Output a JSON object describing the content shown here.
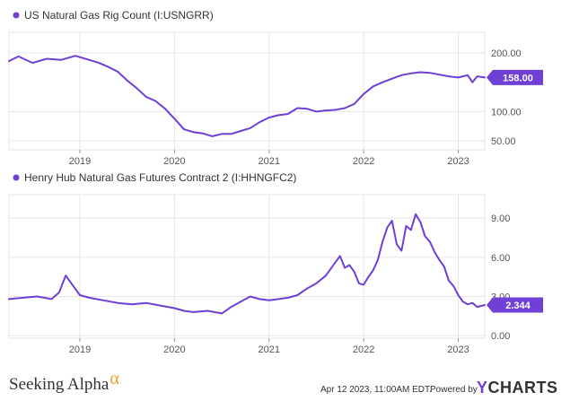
{
  "colors": {
    "series": "#6f3fd6",
    "grid": "#e6e6e6",
    "axis": "#999999"
  },
  "chart_data": [
    {
      "type": "line",
      "legend": "US Natural Gas Rig Count (I:USNGRR)",
      "ylim": [
        35,
        235
      ],
      "xlim": [
        2018.25,
        2023.28
      ],
      "x_ticks": [
        "2019",
        "2020",
        "2021",
        "2022",
        "2023"
      ],
      "y_ticks": [
        {
          "value": 200,
          "label": "200.00"
        },
        {
          "value": 100,
          "label": "100.00"
        },
        {
          "value": 50,
          "label": "50.00"
        }
      ],
      "last_value_label": "158.00",
      "grid": true,
      "series": [
        {
          "x": [
            2018.25,
            2018.35,
            2018.5,
            2018.65,
            2018.8,
            2018.95,
            2019.1,
            2019.2,
            2019.3,
            2019.4,
            2019.5,
            2019.6,
            2019.7,
            2019.8,
            2019.9,
            2020.0,
            2020.1,
            2020.2,
            2020.3,
            2020.4,
            2020.5,
            2020.6,
            2020.7,
            2020.8,
            2020.9,
            2021.0,
            2021.1,
            2021.2,
            2021.3,
            2021.4,
            2021.5,
            2021.6,
            2021.7,
            2021.8,
            2021.9,
            2022.0,
            2022.1,
            2022.2,
            2022.3,
            2022.4,
            2022.5,
            2022.6,
            2022.7,
            2022.8,
            2022.9,
            2023.0,
            2023.1,
            2023.15,
            2023.2,
            2023.28
          ],
          "values": [
            186,
            194,
            183,
            190,
            188,
            195,
            188,
            183,
            176,
            168,
            153,
            140,
            125,
            118,
            105,
            88,
            70,
            65,
            63,
            58,
            62,
            62,
            67,
            72,
            82,
            90,
            94,
            96,
            106,
            105,
            100,
            102,
            103,
            106,
            113,
            130,
            143,
            150,
            156,
            162,
            165,
            167,
            166,
            163,
            160,
            158,
            162,
            150,
            160,
            158
          ]
        }
      ]
    },
    {
      "type": "line",
      "legend": "Henry Hub Natural Gas Futures Contract 2 (I:HHNGFC2)",
      "ylim": [
        -0.2,
        10.8
      ],
      "xlim": [
        2018.25,
        2023.28
      ],
      "x_ticks": [
        "2019",
        "2020",
        "2021",
        "2022",
        "2023"
      ],
      "y_ticks": [
        {
          "value": 9,
          "label": "9.00"
        },
        {
          "value": 6,
          "label": "6.00"
        },
        {
          "value": 3,
          "label": "3.00"
        },
        {
          "value": 0,
          "label": "0.00"
        }
      ],
      "last_value_label": "2.344",
      "grid": true,
      "series": [
        {
          "x": [
            2018.25,
            2018.4,
            2018.55,
            2018.7,
            2018.78,
            2018.85,
            2018.92,
            2019.0,
            2019.1,
            2019.25,
            2019.4,
            2019.55,
            2019.7,
            2019.85,
            2020.0,
            2020.1,
            2020.2,
            2020.35,
            2020.5,
            2020.6,
            2020.7,
            2020.8,
            2020.9,
            2021.0,
            2021.1,
            2021.2,
            2021.3,
            2021.4,
            2021.5,
            2021.6,
            2021.7,
            2021.75,
            2021.8,
            2021.85,
            2021.9,
            2021.95,
            2022.0,
            2022.05,
            2022.1,
            2022.15,
            2022.2,
            2022.25,
            2022.3,
            2022.35,
            2022.4,
            2022.45,
            2022.5,
            2022.55,
            2022.6,
            2022.65,
            2022.7,
            2022.75,
            2022.8,
            2022.85,
            2022.9,
            2022.95,
            2023.0,
            2023.05,
            2023.1,
            2023.15,
            2023.2,
            2023.28
          ],
          "values": [
            2.8,
            2.9,
            3.0,
            2.8,
            3.3,
            4.6,
            3.9,
            3.1,
            2.9,
            2.7,
            2.5,
            2.4,
            2.5,
            2.3,
            2.1,
            1.9,
            1.8,
            1.9,
            1.7,
            2.2,
            2.6,
            3.0,
            2.8,
            2.7,
            2.8,
            2.9,
            3.1,
            3.6,
            4.0,
            4.6,
            5.6,
            6.1,
            5.2,
            5.4,
            4.9,
            4.0,
            3.9,
            4.5,
            5.0,
            5.8,
            7.2,
            8.3,
            8.8,
            7.0,
            6.5,
            8.4,
            8.1,
            9.3,
            8.7,
            7.6,
            7.2,
            6.4,
            5.8,
            5.3,
            4.2,
            3.8,
            3.1,
            2.6,
            2.4,
            2.5,
            2.2,
            2.344
          ]
        }
      ]
    }
  ],
  "footer": {
    "brand": "Seeking Alpha",
    "brand_symbol": "α",
    "date": "Apr 12 2023, 11:00AM EDT.",
    "powered": "Powered by",
    "ycharts_y": "Y",
    "ycharts_rest": "CHARTS"
  }
}
